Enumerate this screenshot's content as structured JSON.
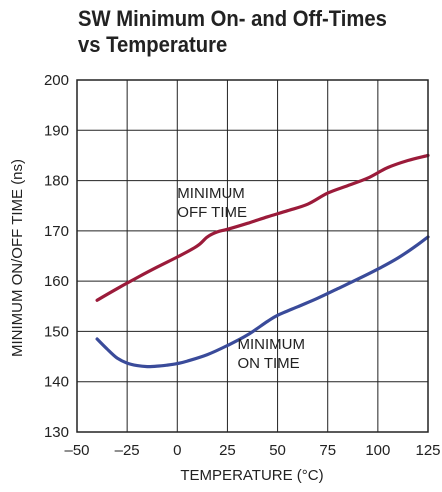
{
  "chart_data": {
    "type": "line",
    "title": "SW Minimum On- and Off-Times",
    "subtitle": "vs Temperature",
    "xlabel": "TEMPERATURE (°C)",
    "ylabel": "MINIMUM ON/OFF TIME (ns)",
    "xlim": [
      -50,
      125
    ],
    "ylim": [
      130,
      200
    ],
    "xticks": [
      -50,
      -25,
      0,
      25,
      50,
      75,
      100,
      125
    ],
    "xtick_labels": [
      "–50",
      "–25",
      "0",
      "25",
      "50",
      "75",
      "100",
      "125"
    ],
    "yticks": [
      130,
      140,
      150,
      160,
      170,
      180,
      190,
      200
    ],
    "ytick_labels": [
      "130",
      "140",
      "150",
      "160",
      "170",
      "180",
      "190",
      "200"
    ],
    "grid": true,
    "series": [
      {
        "name": "MINIMUM OFF TIME",
        "label_lines": [
          "MINIMUM",
          "OFF TIME"
        ],
        "color": "#9b1b3a",
        "x": [
          -40,
          -30,
          -20,
          -10,
          0,
          10,
          15,
          20,
          25,
          35,
          45,
          55,
          65,
          75,
          85,
          95,
          105,
          115,
          125
        ],
        "y": [
          156.2,
          158.5,
          160.7,
          162.8,
          164.8,
          167.0,
          168.8,
          169.8,
          170.3,
          171.5,
          172.8,
          174.0,
          175.3,
          177.5,
          179.0,
          180.5,
          182.6,
          184.0,
          185.0
        ]
      },
      {
        "name": "MINIMUM ON TIME",
        "label_lines": [
          "MINIMUM",
          "ON TIME"
        ],
        "color": "#3a4b9a",
        "x": [
          -40,
          -35,
          -30,
          -25,
          -20,
          -15,
          -10,
          -5,
          0,
          5,
          15,
          25,
          35,
          45,
          50,
          60,
          70,
          80,
          90,
          100,
          110,
          120,
          125
        ],
        "y": [
          148.5,
          146.5,
          144.7,
          143.7,
          143.2,
          143.0,
          143.1,
          143.3,
          143.6,
          144.1,
          145.4,
          147.2,
          149.3,
          152.0,
          153.2,
          154.9,
          156.6,
          158.5,
          160.4,
          162.4,
          164.6,
          167.3,
          168.8
        ]
      }
    ]
  }
}
